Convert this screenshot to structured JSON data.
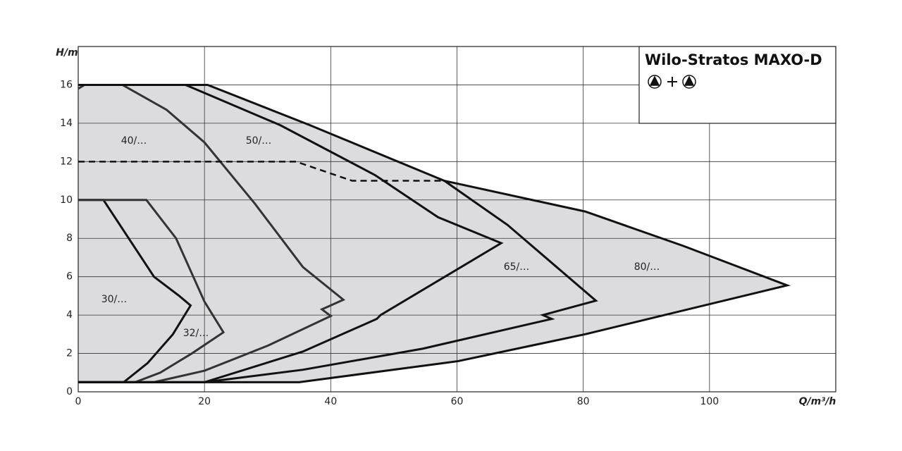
{
  "chart_data": {
    "type": "line",
    "title": "Wilo-Stratos MAXO-D",
    "x_label": "Q/m³/h",
    "y_label": "H/m",
    "xlim": [
      0,
      120
    ],
    "ylim": [
      0,
      18
    ],
    "xticks": [
      0,
      20,
      40,
      60,
      80,
      100
    ],
    "yticks": [
      0,
      2,
      4,
      6,
      8,
      10,
      12,
      14,
      16
    ],
    "grid": true,
    "fill_color": "#dcdcde",
    "series": [
      {
        "name": "30/…",
        "color": "#111111",
        "x": [
          0,
          4,
          12,
          16,
          17.8,
          15,
          11,
          7.2,
          0
        ],
        "values": [
          10,
          10,
          6,
          5,
          4.5,
          3,
          1.5,
          0.5,
          0.5
        ]
      },
      {
        "name": "32/…",
        "color": "#333333",
        "x": [
          0,
          10.8,
          15.5,
          20,
          23,
          18,
          13,
          9,
          0
        ],
        "values": [
          10,
          10,
          8,
          4.7,
          3.1,
          2,
          1,
          0.5,
          0.5
        ]
      },
      {
        "name": "40/…",
        "color": "#333333",
        "x": [
          0,
          1,
          7,
          14,
          20,
          28,
          35.6,
          42,
          38.6,
          40,
          30,
          20,
          12,
          0
        ],
        "values": [
          15.8,
          16,
          16,
          14.7,
          13,
          9.8,
          6.5,
          4.8,
          4.3,
          3.95,
          2.4,
          1.1,
          0.5,
          0.5
        ]
      },
      {
        "name": "50/…",
        "color": "#111111",
        "x": [
          0,
          17,
          32,
          47,
          57,
          67,
          47.9,
          47.3,
          35.6,
          20,
          0
        ],
        "values": [
          16,
          16,
          13.9,
          11.3,
          9.1,
          7.75,
          4,
          3.8,
          2.1,
          0.5,
          0.5
        ]
      },
      {
        "name": "65/…",
        "color": "#111111",
        "x": [
          0,
          20.5,
          36.7,
          58,
          68,
          75.8,
          82,
          73.6,
          75,
          54.6,
          35.6,
          20,
          0
        ],
        "values": [
          16,
          16,
          13.9,
          11,
          8.7,
          6.5,
          4.75,
          4,
          3.8,
          2.25,
          1.15,
          0.5,
          0.5
        ]
      },
      {
        "name": "80/…",
        "color": "#111111",
        "x": [
          58,
          80.3,
          95.9,
          112.3,
          80.3,
          60.2,
          35,
          0
        ],
        "values": [
          11,
          9.4,
          7.6,
          5.55,
          3,
          1.6,
          0.5,
          0.5
        ]
      },
      {
        "color": "#111111",
        "line_style": "dashed",
        "x": [
          0,
          34.5,
          43.4,
          58
        ],
        "values": [
          12,
          12,
          11,
          11
        ]
      }
    ]
  }
}
